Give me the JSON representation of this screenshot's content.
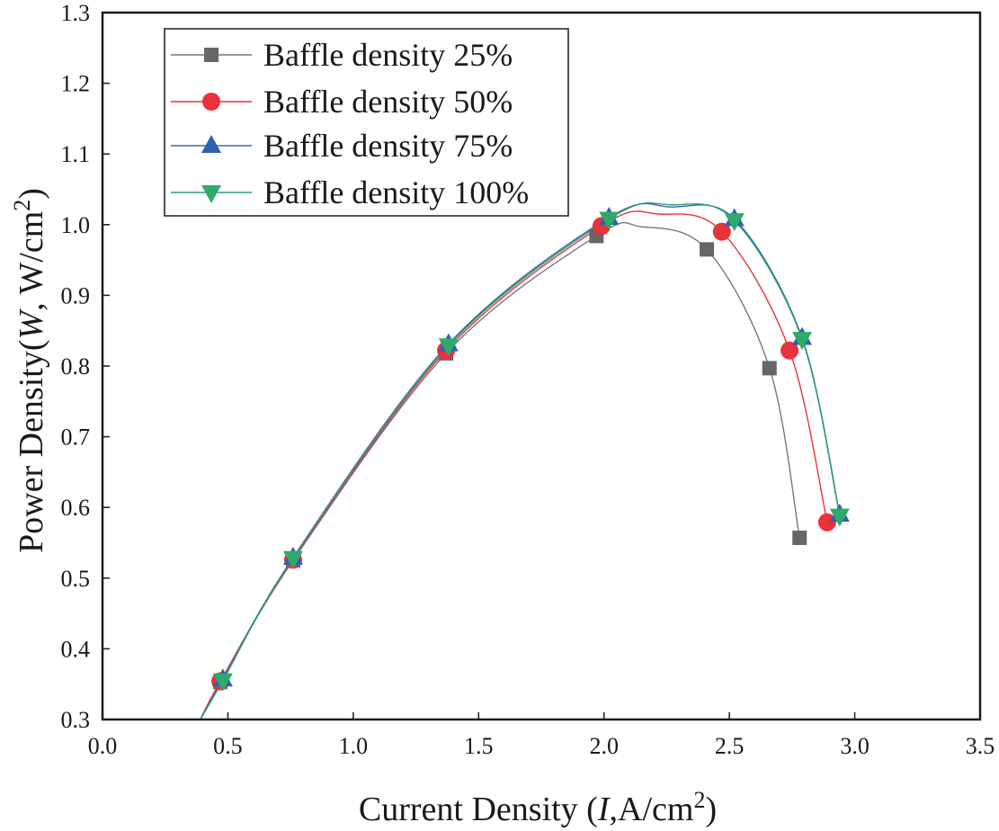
{
  "chart_data": {
    "type": "line",
    "title": "",
    "xlabel": {
      "prefix": "Current Density (",
      "var": "I",
      "mid": ",A/cm",
      "sup": "2",
      "suffix": ")"
    },
    "ylabel": {
      "prefix": "Power Density(",
      "var": "W",
      "mid": ", W/cm",
      "sup": "2",
      "suffix": ")"
    },
    "xlim": [
      0.0,
      3.5
    ],
    "ylim": [
      0.3,
      1.3
    ],
    "xticks": [
      "0.0",
      "0.5",
      "1.0",
      "1.5",
      "2.0",
      "2.5",
      "3.0",
      "3.5"
    ],
    "yticks": [
      "0.3",
      "0.4",
      "0.5",
      "0.6",
      "0.7",
      "0.8",
      "0.9",
      "1.0",
      "1.1",
      "1.2",
      "1.3"
    ],
    "grid": false,
    "legend_position": "top-left",
    "series": [
      {
        "name": "Baffle density 25%",
        "marker": "square",
        "color": "#666666",
        "line_color": "#777777",
        "points": [
          [
            0.47,
            0.353
          ],
          [
            0.76,
            0.525
          ],
          [
            1.37,
            0.818
          ],
          [
            1.97,
            0.984
          ],
          [
            2.41,
            0.965
          ],
          [
            2.66,
            0.797
          ],
          [
            2.78,
            0.557
          ]
        ],
        "curve": [
          [
            0.39,
            0.3
          ],
          [
            0.47,
            0.353
          ],
          [
            0.76,
            0.525
          ],
          [
            1.37,
            0.818
          ],
          [
            1.97,
            0.984
          ],
          [
            2.15,
            0.997
          ],
          [
            2.41,
            0.965
          ],
          [
            2.66,
            0.797
          ],
          [
            2.78,
            0.557
          ]
        ]
      },
      {
        "name": "Baffle density 50%",
        "marker": "circle",
        "color": "#e8323c",
        "line_color": "#e8323c",
        "points": [
          [
            0.47,
            0.354
          ],
          [
            0.76,
            0.526
          ],
          [
            1.37,
            0.822
          ],
          [
            1.99,
            0.998
          ],
          [
            2.47,
            0.99
          ],
          [
            2.74,
            0.822
          ],
          [
            2.89,
            0.579
          ]
        ],
        "curve": [
          [
            0.39,
            0.3
          ],
          [
            0.47,
            0.354
          ],
          [
            0.76,
            0.526
          ],
          [
            1.37,
            0.822
          ],
          [
            1.99,
            0.998
          ],
          [
            2.22,
            1.015
          ],
          [
            2.47,
            0.99
          ],
          [
            2.74,
            0.822
          ],
          [
            2.89,
            0.579
          ]
        ]
      },
      {
        "name": "Baffle density 75%",
        "marker": "triangle-up",
        "color": "#3060b0",
        "line_color": "#3a6aa6",
        "points": [
          [
            0.48,
            0.357
          ],
          [
            0.76,
            0.529
          ],
          [
            1.38,
            0.831
          ],
          [
            2.02,
            1.01
          ],
          [
            2.52,
            1.008
          ],
          [
            2.79,
            0.84
          ],
          [
            2.94,
            0.59
          ]
        ],
        "curve": [
          [
            0.39,
            0.3
          ],
          [
            0.48,
            0.357
          ],
          [
            0.76,
            0.529
          ],
          [
            1.38,
            0.831
          ],
          [
            2.02,
            1.01
          ],
          [
            2.27,
            1.025
          ],
          [
            2.52,
            1.008
          ],
          [
            2.79,
            0.84
          ],
          [
            2.94,
            0.59
          ]
        ]
      },
      {
        "name": "Baffle density 100%",
        "marker": "triangle-down",
        "color": "#2eaa6a",
        "line_color": "#2aa070",
        "points": [
          [
            0.48,
            0.355
          ],
          [
            0.76,
            0.528
          ],
          [
            1.38,
            0.829
          ],
          [
            2.02,
            1.008
          ],
          [
            2.52,
            1.006
          ],
          [
            2.79,
            0.838
          ],
          [
            2.94,
            0.588
          ]
        ],
        "curve": [
          [
            0.39,
            0.3
          ],
          [
            0.48,
            0.355
          ],
          [
            0.76,
            0.528
          ],
          [
            1.38,
            0.829
          ],
          [
            2.02,
            1.008
          ],
          [
            2.27,
            1.028
          ],
          [
            2.52,
            1.006
          ],
          [
            2.79,
            0.838
          ],
          [
            2.94,
            0.588
          ]
        ]
      }
    ]
  }
}
